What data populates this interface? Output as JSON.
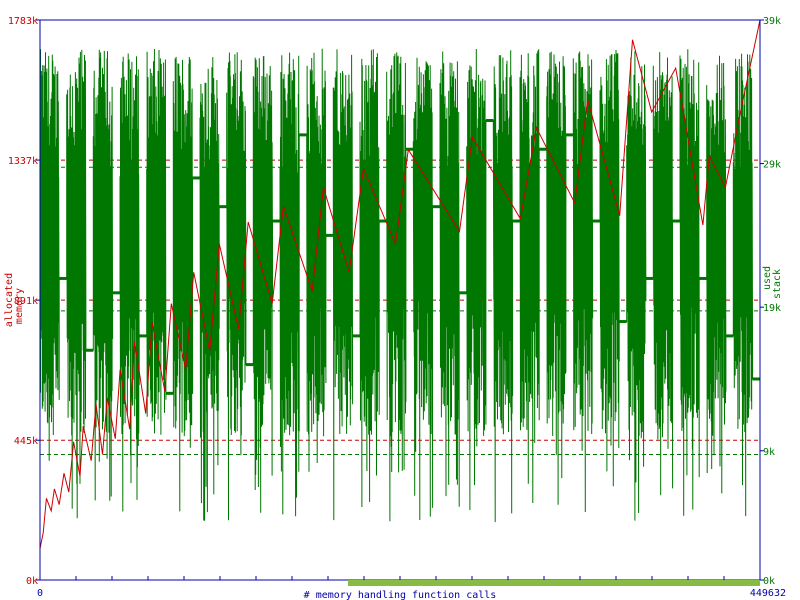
{
  "chart_data": {
    "type": "line",
    "x_range": [
      0,
      449632
    ],
    "x_ticks": [
      "0",
      "449632"
    ],
    "xlabel": "# memory handling function calls",
    "left_axis": {
      "label_lines": [
        "allocated",
        "memory"
      ],
      "ticks": [
        "0k",
        "445k",
        "891k",
        "1337k",
        "1783k"
      ],
      "tick_values": [
        0,
        445,
        891,
        1337,
        1783
      ],
      "range": [
        0,
        1783
      ],
      "color": "#cc0000"
    },
    "right_axis": {
      "label_lines": [
        "used",
        "stack"
      ],
      "ticks": [
        "0k",
        "9k",
        "19k",
        "29k",
        "39k"
      ],
      "tick_values": [
        0,
        9,
        19,
        29,
        39
      ],
      "range": [
        0,
        39
      ],
      "color": "#007700"
    },
    "grid": false,
    "reference_lines": {
      "memory": [
        415,
        861,
        1307
      ],
      "stack": [
        9.3,
        19.3,
        29.3
      ]
    },
    "series": [
      {
        "axis": "left",
        "color": "#cc0000",
        "x": [
          0,
          2000,
          4000,
          7000,
          9000,
          12000,
          15000,
          18000,
          21000,
          25000,
          27000,
          32000,
          35000,
          39000,
          42000,
          47000,
          50000,
          56000,
          59000,
          66000,
          70000,
          78000,
          82000,
          91000,
          96000,
          106000,
          112000,
          124000,
          130000,
          145000,
          152000,
          170000,
          177000,
          193000,
          202000,
          222000,
          230000,
          262000,
          270000,
          300000,
          310000,
          334000,
          342000,
          362000,
          370000,
          382000,
          397000,
          414000,
          418000,
          428000,
          437000,
          449632
        ],
        "y": [
          100,
          150,
          260,
          220,
          290,
          240,
          340,
          280,
          440,
          330,
          490,
          380,
          560,
          400,
          580,
          450,
          670,
          480,
          760,
          530,
          820,
          600,
          880,
          670,
          980,
          730,
          1070,
          800,
          1140,
          880,
          1190,
          920,
          1250,
          980,
          1310,
          1070,
          1370,
          1110,
          1410,
          1150,
          1440,
          1200,
          1530,
          1160,
          1720,
          1490,
          1630,
          1130,
          1350,
          1250,
          1480,
          1783
        ]
      },
      {
        "axis": "right",
        "color": "#007700",
        "x": [
          0,
          449632
        ],
        "y": [
          0,
          22
        ],
        "x_band_start": 770,
        "x_band_start_pct": 0.43,
        "plateau_levels": [
          21,
          16,
          20,
          17,
          13,
          28,
          26,
          15,
          25,
          31,
          24,
          17,
          25,
          30,
          26,
          20,
          32,
          25,
          30,
          31,
          25,
          18,
          21,
          25,
          21,
          17,
          14
        ]
      }
    ]
  }
}
